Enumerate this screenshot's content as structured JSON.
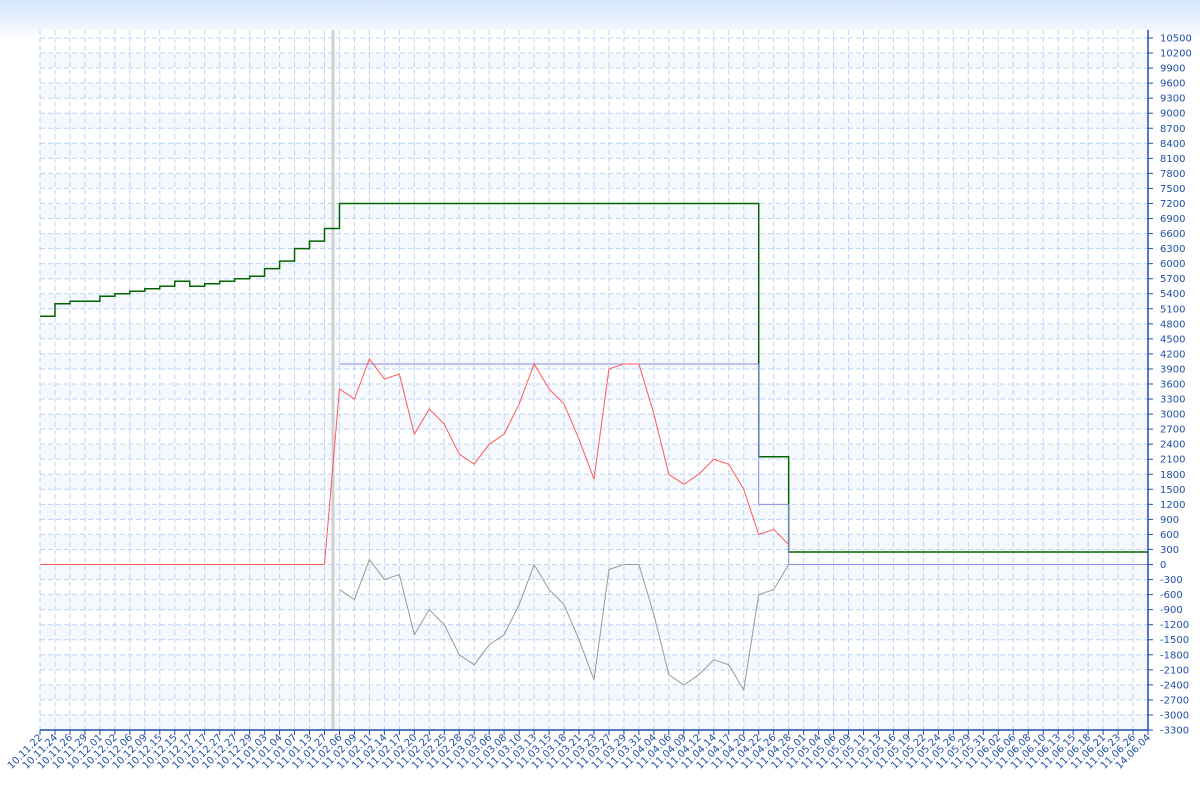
{
  "chart_data": {
    "type": "line",
    "title": "",
    "xlabel": "",
    "ylabel": "",
    "ylim": [
      -3300,
      10500
    ],
    "grid": true,
    "y_axis_side": "right",
    "categories": [
      "10.11.22",
      "10.11.24",
      "10.11.26",
      "10.11.29",
      "10.12.01",
      "10.12.02",
      "10.12.06",
      "10.12.09",
      "10.12.15",
      "10.12.15",
      "10.12.17",
      "10.12.17",
      "10.12.27",
      "10.12.27",
      "10.12.29",
      "11.01.03",
      "11.01.04",
      "11.01.07",
      "11.01.13",
      "11.01.27",
      "11.02.06",
      "11.02.09",
      "11.02.11",
      "11.02.14",
      "11.02.17",
      "11.02.20",
      "11.02.22",
      "11.02.25",
      "11.02.28",
      "11.03.03",
      "11.03.06",
      "11.03.08",
      "11.03.10",
      "11.03.13",
      "11.03.15",
      "11.03.18",
      "11.03.21",
      "11.03.23",
      "11.03.27",
      "11.03.29",
      "11.03.31",
      "11.04.04",
      "11.04.06",
      "11.04.09",
      "11.04.12",
      "11.04.14",
      "11.04.17",
      "11.04.20",
      "11.04.22",
      "11.04.26",
      "11.04.28",
      "11.05.01",
      "11.05.04",
      "11.05.06",
      "11.05.09",
      "11.05.11",
      "11.05.13",
      "11.05.16",
      "11.05.19",
      "11.05.22",
      "11.05.24",
      "11.05.26",
      "11.05.29",
      "11.05.31",
      "11.06.02",
      "11.06.06",
      "11.06.08",
      "11.06.10",
      "11.06.13",
      "11.06.15",
      "11.06.18",
      "11.06.21",
      "11.06.23",
      "11.06.26",
      "14.06.04"
    ],
    "yticks": [
      10500,
      10200,
      9900,
      9600,
      9300,
      9000,
      8700,
      8400,
      8100,
      7800,
      7500,
      7200,
      6900,
      6600,
      6300,
      6000,
      5700,
      5400,
      5100,
      4800,
      4500,
      4200,
      3900,
      3600,
      3300,
      3000,
      2700,
      2400,
      2100,
      1800,
      1500,
      1200,
      900,
      600,
      300,
      0,
      -300,
      -600,
      -900,
      -1200,
      -1500,
      -1800,
      -2100,
      -2400,
      -2700,
      -3000,
      -3300
    ],
    "series": [
      {
        "color": "#006400",
        "step": true,
        "values": [
          4950,
          5200,
          5250,
          5250,
          5350,
          5400,
          5450,
          5500,
          5550,
          5650,
          5550,
          5600,
          5650,
          5700,
          5750,
          5900,
          6050,
          6300,
          6450,
          6700,
          7200,
          7200,
          7200,
          7200,
          7200,
          7200,
          7200,
          7200,
          7200,
          7200,
          7200,
          7200,
          7200,
          7200,
          7200,
          7200,
          7200,
          7200,
          7200,
          7200,
          7200,
          7200,
          7200,
          7200,
          7200,
          7200,
          7200,
          7200,
          2150,
          2150,
          250,
          250,
          250,
          250,
          250,
          250,
          250,
          250,
          250,
          250,
          250,
          250,
          250,
          250,
          250,
          250,
          250,
          250,
          250,
          250,
          250,
          250,
          250,
          250,
          250
        ]
      },
      {
        "color": "#8c8ce6",
        "step": true,
        "values": [
          null,
          null,
          null,
          null,
          null,
          null,
          null,
          null,
          null,
          null,
          null,
          null,
          null,
          null,
          null,
          null,
          null,
          null,
          null,
          null,
          4000,
          4000,
          4000,
          4000,
          4000,
          4000,
          4000,
          4000,
          4000,
          4000,
          4000,
          4000,
          4000,
          4000,
          4000,
          4000,
          4000,
          4000,
          4000,
          4000,
          4000,
          4000,
          4000,
          4000,
          4000,
          4000,
          4000,
          4000,
          1200,
          1200,
          0,
          0,
          0,
          0,
          0,
          0,
          0,
          0,
          0,
          0,
          0,
          0,
          0,
          0,
          0,
          0,
          0,
          0,
          0,
          0,
          0,
          0,
          0,
          0,
          0
        ]
      },
      {
        "color": "#ff5a5a",
        "step": false,
        "values": [
          0,
          0,
          0,
          0,
          0,
          0,
          0,
          0,
          0,
          0,
          0,
          0,
          0,
          0,
          0,
          0,
          0,
          0,
          0,
          0,
          3500,
          3300,
          4100,
          3700,
          3800,
          2600,
          3100,
          2800,
          2200,
          2000,
          2400,
          2600,
          3200,
          4000,
          3500,
          3200,
          2500,
          1700,
          3900,
          4000,
          4000,
          3000,
          1800,
          1600,
          1800,
          2100,
          2000,
          1500,
          600,
          700,
          400,
          null,
          null,
          null,
          null,
          null,
          null,
          null,
          null,
          null,
          null,
          null,
          null,
          null,
          null,
          null,
          null,
          null,
          null,
          null,
          null,
          null,
          null,
          null,
          null
        ]
      },
      {
        "color": "#999999",
        "step": false,
        "values": [
          null,
          null,
          null,
          null,
          null,
          null,
          null,
          null,
          null,
          null,
          null,
          null,
          null,
          null,
          null,
          null,
          null,
          null,
          null,
          null,
          -500,
          -700,
          100,
          -300,
          -200,
          -1400,
          -900,
          -1200,
          -1800,
          -2000,
          -1600,
          -1400,
          -800,
          0,
          -500,
          -800,
          -1500,
          -2300,
          -100,
          0,
          0,
          -1000,
          -2200,
          -2400,
          -2200,
          -1900,
          -2000,
          -2500,
          -600,
          -500,
          0,
          null,
          null,
          null,
          null,
          null,
          null,
          null,
          null,
          null,
          null,
          null,
          null,
          null,
          null,
          null,
          null,
          null,
          null,
          null,
          null,
          null,
          null,
          null,
          null
        ]
      }
    ]
  }
}
